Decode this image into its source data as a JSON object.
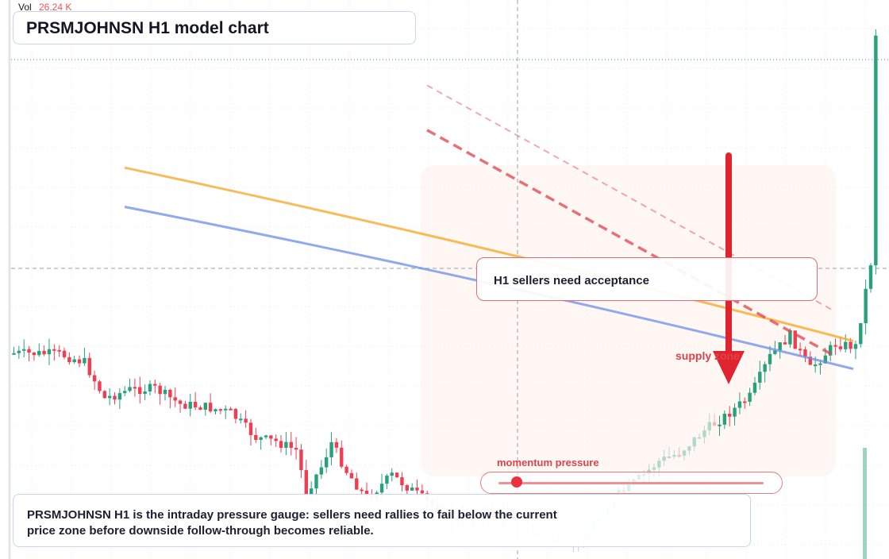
{
  "title": "PRSMJOHNSN H1 model chart",
  "volume": {
    "label": "Vol",
    "value": "26.24 K"
  },
  "callout": "H1 sellers need acceptance",
  "zone_label": "supply zone",
  "gauge": {
    "label": "momentum pressure",
    "level": 0.07
  },
  "note": "PRSMJOHNSN H1 is the intraday pressure gauge: sellers need rallies to fail below the current price zone before downside follow-through becomes reliable.",
  "colors": {
    "up": "#26a17b",
    "down": "#ef3e52",
    "ma_fast": "#f5a623",
    "ma_slow": "#6a8fe8",
    "arrow": "#e0242f"
  },
  "chart_data": {
    "type": "candlestick",
    "timeframe": "H1",
    "close_path": [
      [
        0,
        0.632
      ],
      [
        9,
        0.633
      ],
      [
        14,
        0.648
      ],
      [
        18,
        0.713
      ],
      [
        23,
        0.697
      ],
      [
        28,
        0.695
      ],
      [
        33,
        0.723
      ],
      [
        38,
        0.728
      ],
      [
        43,
        0.738
      ],
      [
        48,
        0.783
      ],
      [
        52,
        0.79
      ],
      [
        56,
        0.805
      ],
      [
        58,
        0.88
      ],
      [
        61,
        0.835
      ],
      [
        63,
        0.792
      ],
      [
        66,
        0.843
      ],
      [
        70,
        0.892
      ],
      [
        75,
        0.85
      ],
      [
        80,
        0.884
      ],
      [
        84,
        0.912
      ],
      [
        88,
        0.93
      ],
      [
        92,
        0.92
      ],
      [
        96,
        0.92
      ],
      [
        100,
        0.92
      ],
      [
        104,
        0.96
      ],
      [
        108,
        0.967
      ],
      [
        112,
        0.967
      ],
      [
        116,
        0.925
      ],
      [
        120,
        0.885
      ],
      [
        124,
        0.857
      ],
      [
        128,
        0.825
      ],
      [
        132,
        0.81
      ],
      [
        137,
        0.77
      ],
      [
        141,
        0.745
      ],
      [
        146,
        0.71
      ],
      [
        150,
        0.638
      ],
      [
        154,
        0.6
      ],
      [
        158,
        0.66
      ],
      [
        163,
        0.615
      ],
      [
        167,
        0.62
      ],
      [
        170,
        0.47
      ],
      [
        171,
        0.06
      ]
    ],
    "moving_averages": [
      {
        "color": "#f5a623",
        "points": [
          [
            0,
            0.3
          ],
          [
            112,
            0.61
          ]
        ]
      },
      {
        "color": "#6a8fe8",
        "points": [
          [
            0,
            0.37
          ],
          [
            112,
            0.66
          ]
        ]
      }
    ],
    "trend_lines": [
      {
        "style": "dashed",
        "from": [
          80,
          0.21
        ],
        "to": [
          160,
          0.64
        ]
      },
      {
        "style": "dotted",
        "from": [
          80,
          0.13
        ],
        "to": [
          160,
          0.56
        ]
      }
    ],
    "ylim": [
      0,
      1
    ]
  }
}
